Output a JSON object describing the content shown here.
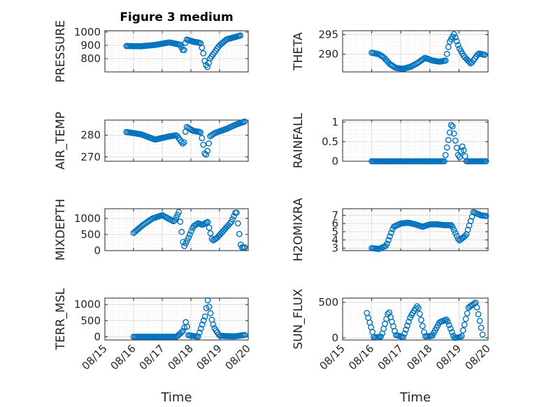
{
  "colors": {
    "marker": "#0072bd",
    "axis": "#262626",
    "grid": "#dcdcdc"
  },
  "xticks": [
    {
      "value": "2023-08-15",
      "label": "08/15"
    },
    {
      "value": "2023-08-16",
      "label": "08/16"
    },
    {
      "value": "2023-08-17",
      "label": "08/17"
    },
    {
      "value": "2023-08-18",
      "label": "08/18"
    },
    {
      "value": "2023-08-19",
      "label": "08/19"
    },
    {
      "value": "2023-08-20",
      "label": "08/20"
    }
  ],
  "chart_data": [
    {
      "id": "pressure",
      "type": "scatter",
      "title": "Figure 3 medium",
      "ylabel": "PRESSURE",
      "xlabel": "",
      "x_range": [
        "2023-08-15",
        "2023-08-20"
      ],
      "ylim": [
        700,
        1010
      ],
      "yticks": [
        800,
        900,
        1000
      ],
      "grid": true,
      "x": [
        "2023-08-15T18:00",
        "2023-08-16T06:00",
        "2023-08-16T18:00",
        "2023-08-17T06:00",
        "2023-08-17T15:00",
        "2023-08-17T18:00",
        "2023-08-17T20:00",
        "2023-08-18T02:00",
        "2023-08-18T08:00",
        "2023-08-18T10:00",
        "2023-08-18T12:00",
        "2023-08-18T14:00",
        "2023-08-18T16:00",
        "2023-08-18T20:00",
        "2023-08-19T00:00",
        "2023-08-19T06:00",
        "2023-08-19T12:00",
        "2023-08-19T18:00"
      ],
      "y": [
        895,
        893,
        903,
        922,
        905,
        850,
        945,
        928,
        918,
        860,
        760,
        735,
        800,
        850,
        900,
        945,
        960,
        975
      ]
    },
    {
      "id": "theta",
      "type": "scatter",
      "title": "",
      "ylabel": "THETA",
      "xlabel": "",
      "x_range": [
        "2023-08-15",
        "2023-08-20"
      ],
      "ylim": [
        285.5,
        296
      ],
      "yticks": [
        290,
        295
      ],
      "grid": true,
      "x": [
        "2023-08-16T00:00",
        "2023-08-16T06:00",
        "2023-08-16T10:00",
        "2023-08-16T15:00",
        "2023-08-16T20:00",
        "2023-08-17T02:00",
        "2023-08-17T08:00",
        "2023-08-17T14:00",
        "2023-08-17T20:00",
        "2023-08-18T02:00",
        "2023-08-18T08:00",
        "2023-08-18T13:00",
        "2023-08-18T16:00",
        "2023-08-18T20:00",
        "2023-08-19T00:00",
        "2023-08-19T04:00",
        "2023-08-19T10:00",
        "2023-08-19T16:00",
        "2023-08-19T22:00"
      ],
      "y": [
        290.4,
        290.0,
        289.2,
        287.5,
        286.5,
        286.3,
        286.8,
        287.8,
        289.1,
        288.4,
        288.1,
        288.4,
        293.0,
        295.2,
        291.7,
        289.5,
        287.6,
        290.2,
        289.8
      ]
    },
    {
      "id": "air_temp",
      "type": "scatter",
      "title": "",
      "ylabel": "AIR_TEMP",
      "xlabel": "",
      "x_range": [
        "2023-08-15",
        "2023-08-20"
      ],
      "ylim": [
        268,
        287
      ],
      "yticks": [
        270,
        280
      ],
      "grid": true,
      "x": [
        "2023-08-15T18:00",
        "2023-08-16T06:00",
        "2023-08-16T18:00",
        "2023-08-17T06:00",
        "2023-08-17T12:00",
        "2023-08-17T18:00",
        "2023-08-17T20:00",
        "2023-08-18T02:00",
        "2023-08-18T08:00",
        "2023-08-18T10:00",
        "2023-08-18T12:00",
        "2023-08-18T14:00",
        "2023-08-18T16:00",
        "2023-08-18T20:00",
        "2023-08-19T06:00",
        "2023-08-19T14:00",
        "2023-08-19T22:00"
      ],
      "y": [
        281.5,
        280.5,
        278.0,
        279.5,
        280.0,
        275.5,
        284.0,
        282.0,
        281.5,
        277.0,
        270.0,
        273.0,
        279.5,
        281.0,
        283.0,
        285.0,
        286.5
      ]
    },
    {
      "id": "rainfall",
      "type": "scatter",
      "title": "",
      "ylabel": "RAINFALL",
      "xlabel": "",
      "x_range": [
        "2023-08-15",
        "2023-08-20"
      ],
      "ylim": [
        0,
        1.05
      ],
      "yticks": [
        0,
        0.5,
        1
      ],
      "grid": true,
      "x": [
        "2023-08-16T00:00",
        "2023-08-16T12:00",
        "2023-08-17T00:00",
        "2023-08-17T12:00",
        "2023-08-18T00:00",
        "2023-08-18T12:00",
        "2023-08-18T18:00",
        "2023-08-19T00:00",
        "2023-08-19T02:00",
        "2023-08-19T03:00",
        "2023-08-19T06:00",
        "2023-08-19T12:00",
        "2023-08-19T23:00"
      ],
      "y": [
        0,
        0,
        0,
        0,
        0,
        0,
        1.0,
        0.05,
        0.3,
        0.4,
        0,
        0,
        0
      ]
    },
    {
      "id": "mixdepth",
      "type": "scatter",
      "title": "",
      "ylabel": "MIXDEPTH",
      "xlabel": "",
      "x_range": [
        "2023-08-15",
        "2023-08-20"
      ],
      "ylim": [
        0,
        1300
      ],
      "yticks": [
        0,
        500,
        1000
      ],
      "grid": true,
      "x": [
        "2023-08-16T00:00",
        "2023-08-16T08:00",
        "2023-08-16T16:00",
        "2023-08-17T00:00",
        "2023-08-17T10:00",
        "2023-08-17T14:00",
        "2023-08-17T18:00",
        "2023-08-17T22:00",
        "2023-08-18T02:00",
        "2023-08-18T06:00",
        "2023-08-18T10:00",
        "2023-08-18T14:00",
        "2023-08-18T18:00",
        "2023-08-18T22:00",
        "2023-08-19T04:00",
        "2023-08-19T10:00",
        "2023-08-19T14:00",
        "2023-08-19T18:00",
        "2023-08-19T22:00"
      ],
      "y": [
        550,
        800,
        1000,
        1100,
        900,
        1200,
        100,
        400,
        750,
        850,
        800,
        900,
        300,
        400,
        650,
        900,
        1250,
        100,
        100
      ]
    },
    {
      "id": "h2omixra",
      "type": "scatter",
      "title": "",
      "ylabel": "H2OMIXRA",
      "xlabel": "",
      "x_range": [
        "2023-08-15",
        "2023-08-20"
      ],
      "ylim": [
        2.7,
        7.8
      ],
      "yticks": [
        3,
        4,
        5,
        6,
        7
      ],
      "grid": true,
      "x": [
        "2023-08-16T00:00",
        "2023-08-16T06:00",
        "2023-08-16T12:00",
        "2023-08-16T18:00",
        "2023-08-17T00:00",
        "2023-08-17T06:00",
        "2023-08-17T12:00",
        "2023-08-17T18:00",
        "2023-08-18T00:00",
        "2023-08-18T06:00",
        "2023-08-18T12:00",
        "2023-08-18T18:00",
        "2023-08-19T00:00",
        "2023-08-19T06:00",
        "2023-08-19T12:00",
        "2023-08-19T18:00",
        "2023-08-19T23:00"
      ],
      "y": [
        3.0,
        2.9,
        3.3,
        5.6,
        6.0,
        6.1,
        5.9,
        5.6,
        5.9,
        5.9,
        5.8,
        5.8,
        3.9,
        4.6,
        7.4,
        7.0,
        6.9
      ]
    },
    {
      "id": "terr_msl",
      "type": "scatter",
      "title": "",
      "ylabel": "TERR_MSL",
      "xlabel": "Time",
      "x_range": [
        "2023-08-15",
        "2023-08-20"
      ],
      "ylim": [
        -100,
        1200
      ],
      "yticks": [
        0,
        500,
        1000
      ],
      "grid": true,
      "x": [
        "2023-08-16T00:00",
        "2023-08-16T12:00",
        "2023-08-17T00:00",
        "2023-08-17T12:00",
        "2023-08-17T18:00",
        "2023-08-17T20:00",
        "2023-08-17T22:00",
        "2023-08-18T06:00",
        "2023-08-18T12:00",
        "2023-08-18T14:00",
        "2023-08-18T16:00",
        "2023-08-18T18:00",
        "2023-08-18T20:00",
        "2023-08-19T00:00",
        "2023-08-19T12:00",
        "2023-08-19T22:00"
      ],
      "y": [
        0,
        0,
        0,
        0,
        200,
        500,
        50,
        0,
        650,
        1150,
        800,
        450,
        250,
        30,
        10,
        60
      ]
    },
    {
      "id": "sun_flux",
      "type": "scatter",
      "title": "",
      "ylabel": "SUN_FLUX",
      "xlabel": "Time",
      "x_range": [
        "2023-08-15",
        "2023-08-20"
      ],
      "ylim": [
        -30,
        560
      ],
      "yticks": [
        0,
        500
      ],
      "grid": true,
      "x": [
        "2023-08-15T20:00",
        "2023-08-16T02:00",
        "2023-08-16T08:00",
        "2023-08-16T14:00",
        "2023-08-16T20:00",
        "2023-08-17T02:00",
        "2023-08-17T08:00",
        "2023-08-17T14:00",
        "2023-08-17T20:00",
        "2023-08-18T02:00",
        "2023-08-18T08:00",
        "2023-08-18T14:00",
        "2023-08-18T20:00",
        "2023-08-19T02:00",
        "2023-08-19T08:00",
        "2023-08-19T14:00",
        "2023-08-19T20:00"
      ],
      "y": [
        350,
        0,
        20,
        380,
        40,
        10,
        300,
        460,
        20,
        30,
        220,
        260,
        0,
        10,
        430,
        500,
        0
      ]
    }
  ]
}
